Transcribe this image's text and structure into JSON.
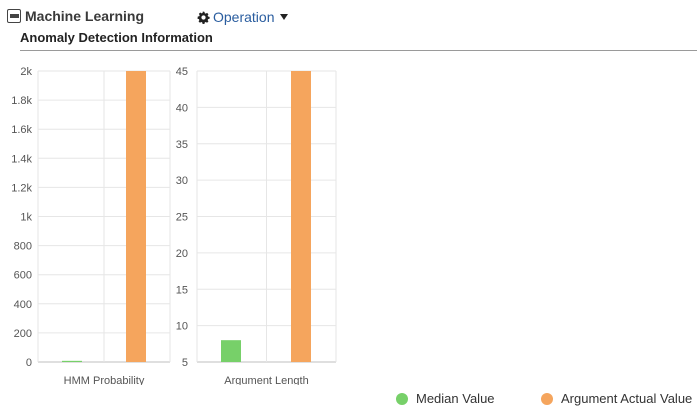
{
  "header": {
    "title": "Machine Learning",
    "operation_menu_label": "Operation"
  },
  "section": {
    "title": "Anomaly Detection Information"
  },
  "colors": {
    "median": "#77d069",
    "actual": "#f5a55d",
    "link": "#2a5d9f"
  },
  "chart_data": [
    {
      "type": "bar",
      "categories": [
        "HMM Probability"
      ],
      "xlabel": "HMM Probability",
      "ylim": [
        0,
        2000
      ],
      "yticks": [
        0,
        200,
        400,
        600,
        800,
        1000,
        1200,
        1400,
        1600,
        1800,
        2000
      ],
      "ytick_labels": [
        "0",
        "200",
        "400",
        "600",
        "800",
        "1k",
        "1.2k",
        "1.4k",
        "1.6k",
        "1.8k",
        "2k"
      ],
      "grid": true,
      "series": [
        {
          "name": "Median Value",
          "values": [
            8
          ]
        },
        {
          "name": "Argument Actual Value",
          "values": [
            2000
          ]
        }
      ]
    },
    {
      "type": "bar",
      "categories": [
        "Argument Length"
      ],
      "xlabel": "Argument Length",
      "ylim": [
        5,
        45
      ],
      "yticks": [
        5,
        10,
        15,
        20,
        25,
        30,
        35,
        40,
        45
      ],
      "ytick_labels": [
        "5",
        "10",
        "15",
        "20",
        "25",
        "30",
        "35",
        "40",
        "45"
      ],
      "grid": true,
      "series": [
        {
          "name": "Median Value",
          "values": [
            8
          ]
        },
        {
          "name": "Argument Actual Value",
          "values": [
            45
          ]
        }
      ]
    }
  ],
  "legend": {
    "position": "bottom-right",
    "items": [
      {
        "label": "Median Value"
      },
      {
        "label": "Argument Actual Value"
      }
    ]
  }
}
